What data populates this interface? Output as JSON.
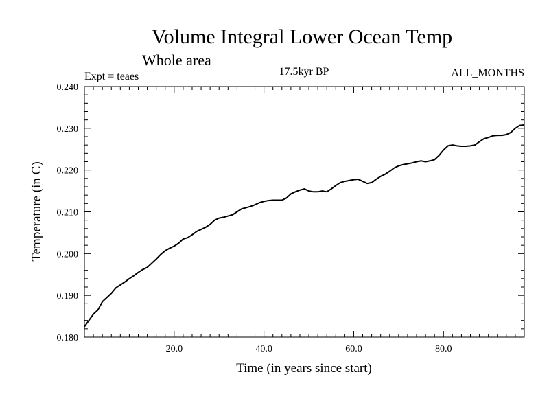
{
  "chart_data": {
    "type": "line",
    "title": "Volume Integral Lower Ocean Temp",
    "subtitle": "Whole area",
    "experiment": "Expt = teaes",
    "period": "17.5kyr BP",
    "months": "ALL_MONTHS",
    "xlabel": "Time (in years since start)",
    "ylabel": "Temperature (in C)",
    "xlim": [
      0,
      98
    ],
    "ylim": [
      0.18,
      0.24
    ],
    "xticks": [
      20,
      40,
      60,
      80
    ],
    "xtick_labels": [
      "20.0",
      "40.0",
      "60.0",
      "80.0"
    ],
    "yticks": [
      0.18,
      0.19,
      0.2,
      0.21,
      0.22,
      0.23,
      0.24
    ],
    "ytick_labels": [
      "0.180",
      "0.190",
      "0.200",
      "0.210",
      "0.220",
      "0.230",
      "0.240"
    ],
    "series": [
      {
        "name": "Temperature",
        "x": [
          0,
          1,
          2,
          3,
          4,
          5,
          6,
          7,
          8,
          9,
          10,
          11,
          12,
          13,
          14,
          15,
          16,
          17,
          18,
          19,
          20,
          21,
          22,
          23,
          24,
          25,
          26,
          27,
          28,
          29,
          30,
          31,
          32,
          33,
          34,
          35,
          36,
          37,
          38,
          39,
          40,
          41,
          42,
          43,
          44,
          45,
          46,
          47,
          48,
          49,
          50,
          51,
          52,
          53,
          54,
          55,
          56,
          57,
          58,
          59,
          60,
          61,
          62,
          63,
          64,
          65,
          66,
          67,
          68,
          69,
          70,
          71,
          72,
          73,
          74,
          75,
          76,
          77,
          78,
          79,
          80,
          81,
          82,
          83,
          84,
          85,
          86,
          87,
          88,
          89,
          90,
          91,
          92,
          93,
          94,
          95,
          96,
          97,
          98
        ],
        "values": [
          0.1825,
          0.184,
          0.1855,
          0.1865,
          0.1885,
          0.1895,
          0.1905,
          0.1918,
          0.1925,
          0.1932,
          0.194,
          0.1947,
          0.1955,
          0.1962,
          0.1967,
          0.1977,
          0.1987,
          0.1998,
          0.2007,
          0.2013,
          0.2018,
          0.2025,
          0.2035,
          0.2038,
          0.2045,
          0.2053,
          0.2058,
          0.2063,
          0.207,
          0.208,
          0.2085,
          0.2087,
          0.209,
          0.2093,
          0.21,
          0.2107,
          0.211,
          0.2113,
          0.2117,
          0.2122,
          0.2125,
          0.2127,
          0.2128,
          0.2128,
          0.2128,
          0.2133,
          0.2143,
          0.2148,
          0.2152,
          0.2155,
          0.215,
          0.2148,
          0.2148,
          0.215,
          0.2148,
          0.2155,
          0.2163,
          0.217,
          0.2173,
          0.2175,
          0.2177,
          0.2178,
          0.2173,
          0.2168,
          0.217,
          0.2178,
          0.2185,
          0.219,
          0.2197,
          0.2205,
          0.221,
          0.2213,
          0.2215,
          0.2217,
          0.222,
          0.2222,
          0.222,
          0.2222,
          0.2225,
          0.2235,
          0.2248,
          0.2258,
          0.226,
          0.2258,
          0.2257,
          0.2257,
          0.2258,
          0.226,
          0.2268,
          0.2275,
          0.2278,
          0.2282,
          0.2283,
          0.2283,
          0.2285,
          0.229,
          0.23,
          0.2307,
          0.2308
        ]
      }
    ],
    "grid": false,
    "legend": "none"
  }
}
